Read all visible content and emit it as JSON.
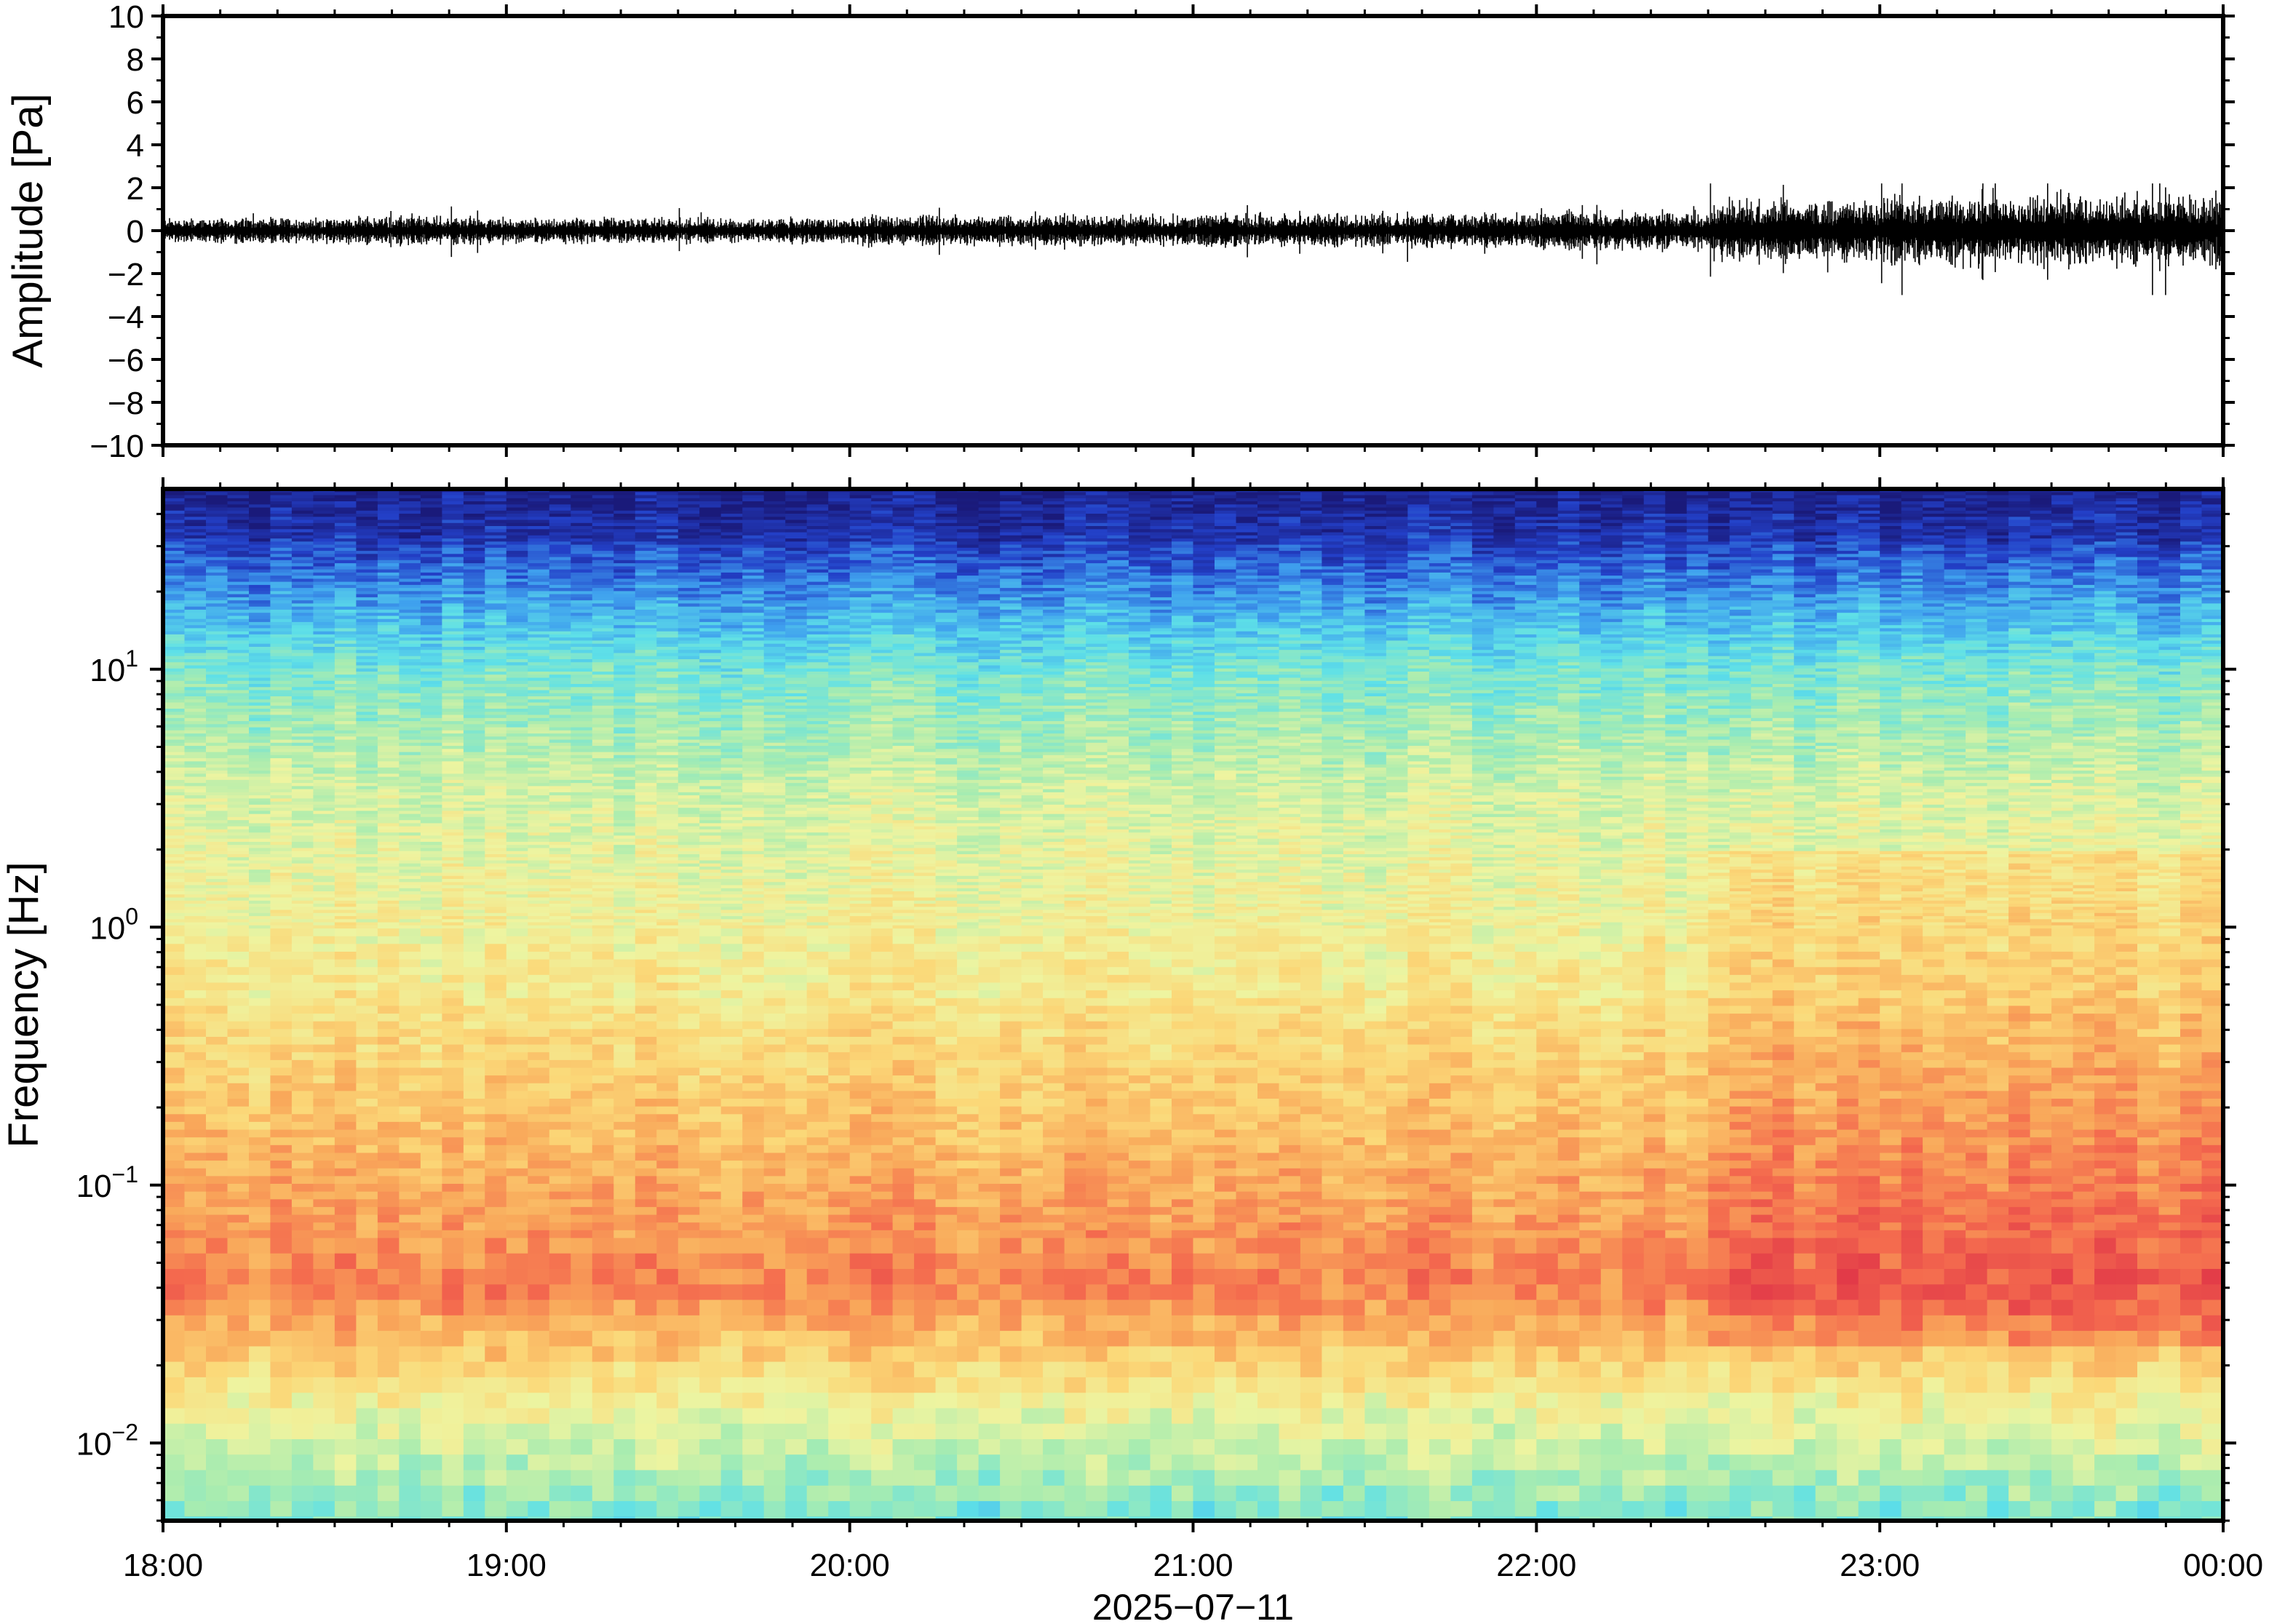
{
  "chart_data": [
    {
      "type": "line",
      "panel": "waveform",
      "ylabel": "Amplitude [Pa]",
      "ylim": [
        -10,
        10
      ],
      "yticks": [
        10,
        8,
        6,
        4,
        2,
        0,
        -2,
        -4,
        -6,
        -8,
        -10
      ],
      "ytick_labels": [
        "10",
        "8",
        "6",
        "4",
        "2",
        "0",
        "−2",
        "−4",
        "−6",
        "−8",
        "−10"
      ],
      "x_range_hours": [
        18,
        24
      ],
      "envelope_segments": [
        {
          "from": 18.0,
          "to": 18.5,
          "amp": 0.45
        },
        {
          "from": 18.5,
          "to": 19.0,
          "amp": 0.5
        },
        {
          "from": 19.0,
          "to": 20.0,
          "amp": 0.45
        },
        {
          "from": 20.0,
          "to": 21.0,
          "amp": 0.55
        },
        {
          "from": 21.0,
          "to": 22.0,
          "amp": 0.6
        },
        {
          "from": 22.0,
          "to": 22.5,
          "amp": 0.7
        },
        {
          "from": 22.5,
          "to": 23.0,
          "amp": 1.1
        },
        {
          "from": 23.0,
          "to": 24.0,
          "amp": 1.3
        }
      ],
      "peak_min": -3.0,
      "peak_max": 2.2
    },
    {
      "type": "heatmap",
      "panel": "spectrogram",
      "ylabel": "Frequency [Hz]",
      "yscale": "log",
      "ylim": [
        0.005,
        50
      ],
      "yticks": [
        0.01,
        0.1,
        1,
        10
      ],
      "ytick_labels": [
        {
          "base": "10",
          "exp": "−2"
        },
        {
          "base": "10",
          "exp": "−1"
        },
        {
          "base": "10",
          "exp": "0"
        },
        {
          "base": "10",
          "exp": "1"
        }
      ],
      "colormap": "spectral_r",
      "colormap_stops": [
        "#1a1a7a",
        "#2340c8",
        "#3fa0ee",
        "#5ee0e8",
        "#a8ecb0",
        "#eef4a0",
        "#fbd878",
        "#f9a85a",
        "#f46a4e",
        "#e23a48"
      ],
      "x_range_hours": [
        18,
        24
      ],
      "xticks": [
        18,
        19,
        20,
        21,
        22,
        23,
        24
      ],
      "xtick_labels": [
        "18:00",
        "19:00",
        "20:00",
        "21:00",
        "22:00",
        "23:00",
        "00:00"
      ],
      "xlabel": "2025−07−11"
    }
  ]
}
